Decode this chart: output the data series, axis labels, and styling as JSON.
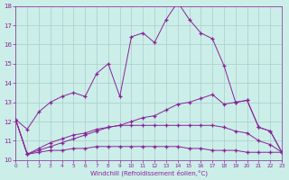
{
  "x": [
    0,
    1,
    2,
    3,
    4,
    5,
    6,
    7,
    8,
    9,
    10,
    11,
    12,
    13,
    14,
    15,
    16,
    17,
    18,
    19,
    20,
    21,
    22,
    23
  ],
  "line1": [
    12.1,
    11.6,
    12.5,
    13.0,
    13.3,
    13.5,
    13.3,
    14.5,
    15.0,
    13.3,
    16.4,
    16.6,
    16.1,
    17.3,
    18.2,
    17.3,
    16.6,
    16.3,
    14.9,
    13.0,
    13.1,
    11.7,
    11.5,
    10.4
  ],
  "line2": [
    12.1,
    10.3,
    10.5,
    10.7,
    10.9,
    11.1,
    11.3,
    11.5,
    11.7,
    11.8,
    12.0,
    12.2,
    12.3,
    12.6,
    12.9,
    13.0,
    13.2,
    13.4,
    12.9,
    13.0,
    13.1,
    11.7,
    11.5,
    10.4
  ],
  "line3": [
    12.1,
    10.3,
    10.6,
    10.9,
    11.1,
    11.3,
    11.4,
    11.6,
    11.7,
    11.8,
    11.8,
    11.8,
    11.8,
    11.8,
    11.8,
    11.8,
    11.8,
    11.8,
    11.7,
    11.5,
    11.4,
    11.0,
    10.8,
    10.4
  ],
  "line4": [
    12.1,
    10.3,
    10.4,
    10.5,
    10.5,
    10.6,
    10.6,
    10.7,
    10.7,
    10.7,
    10.7,
    10.7,
    10.7,
    10.7,
    10.7,
    10.6,
    10.6,
    10.5,
    10.5,
    10.5,
    10.4,
    10.4,
    10.4,
    10.4
  ],
  "color": "#882299",
  "bg_color": "#cceee8",
  "grid_color": "#aacccc",
  "xlabel": "Windchill (Refroidissement éolien,°C)",
  "ylim": [
    10,
    18
  ],
  "xlim": [
    0,
    23
  ],
  "yticks": [
    10,
    11,
    12,
    13,
    14,
    15,
    16,
    17,
    18
  ],
  "xticks": [
    0,
    1,
    2,
    3,
    4,
    5,
    6,
    7,
    8,
    9,
    10,
    11,
    12,
    13,
    14,
    15,
    16,
    17,
    18,
    19,
    20,
    21,
    22,
    23
  ]
}
